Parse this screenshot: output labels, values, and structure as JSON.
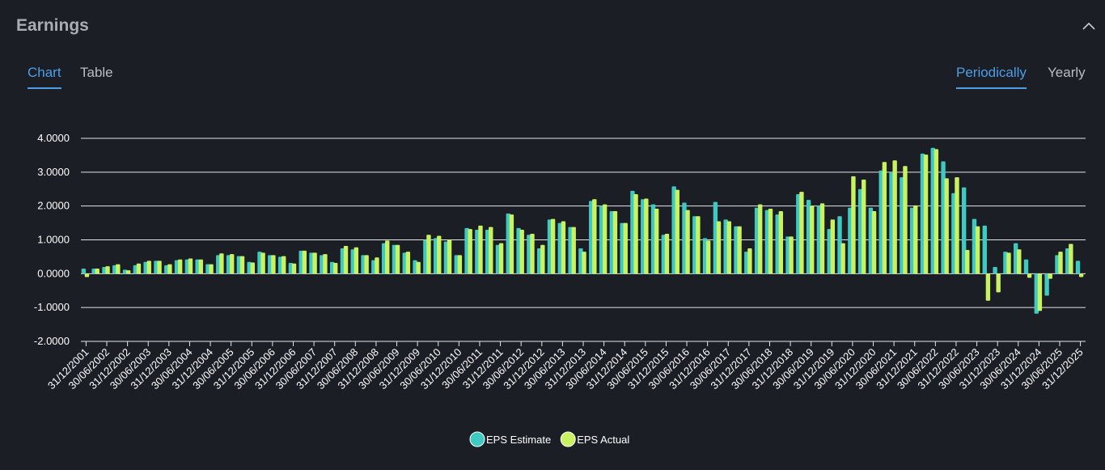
{
  "header": {
    "title": "Earnings"
  },
  "tabs": [
    "Chart",
    "Table"
  ],
  "views": [
    "Periodically",
    "Yearly"
  ],
  "chart_data": {
    "type": "bar",
    "categories": [
      "31/12/2001",
      null,
      "30/06/2002",
      null,
      "31/12/2002",
      null,
      "30/06/2003",
      null,
      "31/12/2003",
      null,
      "30/06/2004",
      null,
      "31/12/2004",
      null,
      "30/06/2005",
      null,
      "31/12/2005",
      null,
      "30/06/2006",
      null,
      "31/12/2006",
      null,
      "30/06/2007",
      null,
      "31/12/2007",
      null,
      "30/06/2008",
      null,
      "31/12/2008",
      null,
      "30/06/2009",
      null,
      "31/12/2009",
      null,
      "30/06/2010",
      null,
      "31/12/2010",
      null,
      "30/06/2011",
      null,
      "31/12/2011",
      null,
      "30/06/2012",
      null,
      "31/12/2012",
      null,
      "30/06/2013",
      null,
      "31/12/2013",
      null,
      "30/06/2014",
      null,
      "31/12/2014",
      null,
      "30/06/2015",
      null,
      "31/12/2015",
      null,
      "30/06/2016",
      null,
      "31/12/2016",
      null,
      "30/06/2017",
      null,
      "31/12/2017",
      null,
      "30/06/2018",
      null,
      "31/12/2018",
      null,
      "30/06/2019",
      null,
      "31/12/2019",
      null,
      "30/06/2020",
      null,
      "31/12/2020",
      null,
      "30/06/2021",
      null,
      "31/12/2021",
      null,
      "30/06/2022",
      null,
      "31/12/2022",
      null,
      "30/06/2023",
      null,
      "31/12/2023",
      null,
      "30/06/2024",
      null,
      "31/12/2024",
      null,
      "30/06/2025",
      null,
      "31/12/2025"
    ],
    "series": [
      {
        "name": "EPS Estimate",
        "color": "#3ec9c1",
        "values": [
          0.15,
          0.15,
          0.2,
          0.25,
          0.12,
          0.25,
          0.35,
          0.38,
          0.25,
          0.4,
          0.42,
          0.42,
          0.28,
          0.55,
          0.55,
          0.52,
          0.35,
          0.65,
          0.55,
          0.5,
          0.32,
          0.68,
          0.62,
          0.55,
          0.35,
          0.75,
          0.72,
          0.55,
          0.4,
          0.9,
          0.85,
          0.62,
          0.4,
          1.0,
          1.05,
          0.95,
          0.55,
          1.35,
          1.3,
          1.3,
          0.85,
          1.78,
          1.35,
          1.15,
          0.75,
          1.6,
          1.5,
          1.38,
          0.75,
          2.15,
          2.0,
          1.85,
          1.5,
          2.45,
          2.2,
          2.05,
          1.15,
          2.58,
          2.1,
          1.7,
          1.05,
          2.12,
          1.6,
          1.4,
          0.65,
          1.95,
          1.88,
          1.75,
          1.1,
          2.35,
          2.18,
          2.0,
          1.32,
          1.7,
          1.95,
          2.5,
          1.95,
          3.05,
          3.0,
          2.85,
          1.95,
          3.55,
          3.72,
          3.32,
          2.38,
          2.55,
          1.62,
          1.42,
          0.2,
          0.65,
          0.9,
          0.42,
          -1.18,
          -0.65,
          0.55,
          0.75,
          0.38
        ]
      },
      {
        "name": "EPS Actual",
        "color": "#c9f263",
        "values": [
          -0.1,
          0.15,
          0.22,
          0.28,
          0.1,
          0.3,
          0.38,
          0.38,
          0.28,
          0.42,
          0.45,
          0.42,
          0.28,
          0.6,
          0.58,
          0.52,
          0.33,
          0.62,
          0.55,
          0.52,
          0.3,
          0.68,
          0.62,
          0.58,
          0.32,
          0.82,
          0.78,
          0.55,
          0.48,
          0.98,
          0.85,
          0.65,
          0.35,
          1.15,
          1.12,
          1.0,
          0.55,
          1.32,
          1.42,
          1.38,
          0.9,
          1.75,
          1.3,
          1.18,
          0.85,
          1.62,
          1.55,
          1.38,
          0.65,
          2.2,
          2.05,
          1.85,
          1.5,
          2.35,
          2.22,
          1.92,
          1.18,
          2.48,
          1.88,
          1.7,
          0.98,
          1.55,
          1.55,
          1.4,
          0.75,
          2.05,
          1.92,
          1.85,
          1.1,
          2.42,
          2.0,
          2.08,
          1.6,
          0.9,
          2.88,
          2.78,
          1.85,
          3.3,
          3.35,
          3.18,
          2.02,
          3.52,
          3.68,
          2.82,
          2.85,
          0.7,
          1.4,
          -0.8,
          -0.55,
          0.62,
          0.72,
          -0.12,
          -1.1,
          -0.15,
          0.65,
          0.88,
          -0.1
        ]
      }
    ],
    "ylim": [
      -2,
      4
    ],
    "yticks": [
      {
        "value": -2,
        "label": "-2.0000"
      },
      {
        "value": -1,
        "label": "-1.0000"
      },
      {
        "value": 0,
        "label": "0.0000"
      },
      {
        "value": 1,
        "label": "1.0000"
      },
      {
        "value": 2,
        "label": "2.0000"
      },
      {
        "value": 3,
        "label": "3.0000"
      },
      {
        "value": 4,
        "label": "4.0000"
      }
    ],
    "grid": true
  }
}
